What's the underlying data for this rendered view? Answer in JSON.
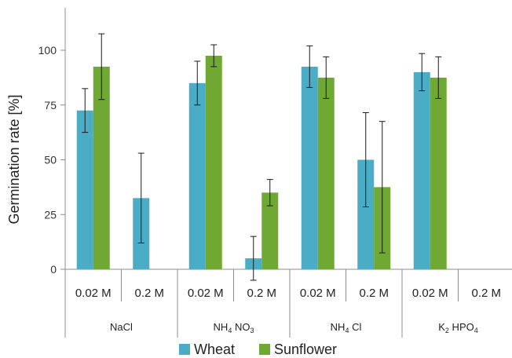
{
  "chart_data": {
    "type": "bar",
    "ylabel": "Germination rate [%]",
    "xlabel": "",
    "ylim": [
      0,
      110
    ],
    "yticks": [
      0,
      25,
      50,
      75,
      100
    ],
    "legend_position": "bottom",
    "categories": [
      "0.02 M",
      "0.2 M",
      "0.02 M",
      "0.2 M",
      "0.02 M",
      "0.2 M",
      "0.02 M",
      "0.2 M"
    ],
    "groups": [
      {
        "label": "NaCl",
        "parts": [
          {
            "t": "NaCl",
            "sub": false
          }
        ]
      },
      {
        "label": "NH4 NO3",
        "parts": [
          {
            "t": "NH",
            "sub": false
          },
          {
            "t": "4",
            "sub": true
          },
          {
            "t": " NO",
            "sub": false
          },
          {
            "t": "3",
            "sub": true
          }
        ]
      },
      {
        "label": "NH4 Cl",
        "parts": [
          {
            "t": "NH",
            "sub": false
          },
          {
            "t": "4",
            "sub": true
          },
          {
            "t": " Cl",
            "sub": false
          }
        ]
      },
      {
        "label": "K2 HPO4",
        "parts": [
          {
            "t": "K",
            "sub": false
          },
          {
            "t": "2",
            "sub": true
          },
          {
            "t": " HPO",
            "sub": false
          },
          {
            "t": "4",
            "sub": true
          }
        ]
      }
    ],
    "series": [
      {
        "name": "Wheat",
        "color": "#4BACC6",
        "values": [
          72.5,
          32.5,
          85,
          5,
          92.5,
          50,
          90,
          null
        ],
        "errors": [
          10,
          20.5,
          10,
          10,
          9.5,
          21.5,
          8.5,
          null
        ]
      },
      {
        "name": "Sunflower",
        "color": "#6FA832",
        "values": [
          92.5,
          null,
          97.5,
          35,
          87.5,
          37.5,
          87.5,
          null
        ],
        "errors": [
          15,
          null,
          5,
          6,
          9.5,
          30,
          9.5,
          null
        ]
      }
    ]
  }
}
